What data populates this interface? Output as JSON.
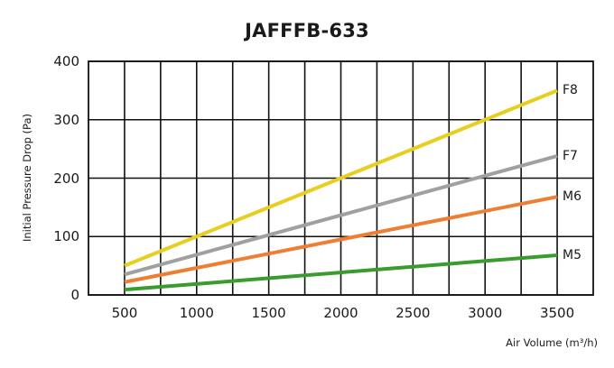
{
  "chart_data": {
    "type": "line",
    "title": "JAFFFB-633",
    "xlabel": "Air Volume (m³/h)",
    "ylabel": "Initial Pressure Drop (Pa)",
    "x": [
      500,
      3500
    ],
    "xticks": [
      500,
      1000,
      1500,
      2000,
      2500,
      3000,
      3500
    ],
    "yticks": [
      0,
      100,
      200,
      300,
      400
    ],
    "xlim": [
      250,
      3750
    ],
    "ylim": [
      0,
      400
    ],
    "grid": true,
    "legend_position": "inline-right-end",
    "series": [
      {
        "name": "F8",
        "color": "#e6cf1f",
        "values": [
          50,
          350
        ]
      },
      {
        "name": "F7",
        "color": "#a0a0a0",
        "values": [
          35,
          238
        ]
      },
      {
        "name": "M6",
        "color": "#ee7e33",
        "values": [
          22,
          168
        ]
      },
      {
        "name": "M5",
        "color": "#3a9b2f",
        "values": [
          9,
          68
        ]
      }
    ]
  }
}
